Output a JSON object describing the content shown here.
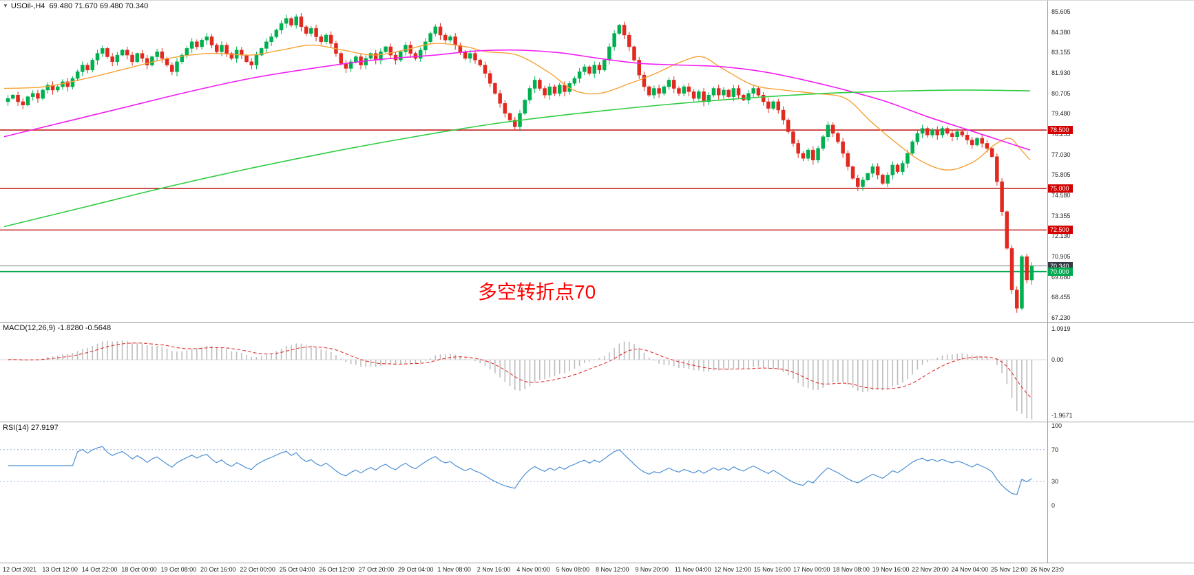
{
  "accent_colors": {
    "up_candle": "#00b050",
    "down_candle": "#e02a20",
    "level_line": "#c22020",
    "level_badge": "#d40000",
    "support_badge": "#00a84f",
    "current_badge": "#343b46",
    "annotation_red": "#ff0000"
  },
  "time_axis": {
    "labels": [
      "12 Oct 2021",
      "13 Oct 12:00",
      "14 Oct 22:00",
      "18 Oct 00:00",
      "19 Oct 08:00",
      "20 Oct 16:00",
      "22 Oct 00:00",
      "25 Oct 04:00",
      "26 Oct 12:00",
      "27 Oct 20:00",
      "29 Oct 04:00",
      "1 Nov 08:00",
      "2 Nov 16:00",
      "4 Nov 00:00",
      "5 Nov 08:00",
      "8 Nov 12:00",
      "9 Nov 20:00",
      "11 Nov 04:00",
      "12 Nov 12:00",
      "15 Nov 16:00",
      "17 Nov 00:00",
      "18 Nov 08:00",
      "19 Nov 16:00",
      "22 Nov 20:00",
      "24 Nov 04:00",
      "25 Nov 12:00",
      "26 Nov 23:0"
    ]
  },
  "chart_data": [
    {
      "type": "candlestick",
      "title": "USOil-,H4",
      "ohlc_header": "69.480 71.670 69.480 70.340",
      "ylim": [
        67.23,
        85.605
      ],
      "y_ticks": [
        "85.605",
        "84.380",
        "83.155",
        "81.930",
        "80.705",
        "79.480",
        "78.255",
        "77.030",
        "75.805",
        "74.580",
        "73.355",
        "72.130",
        "70.905",
        "69.680",
        "68.455",
        "67.230"
      ],
      "up_color": "#00b050",
      "down_color": "#e02a20",
      "closes": [
        80.4,
        80.6,
        80.2,
        80.0,
        80.5,
        80.7,
        80.4,
        80.9,
        81.2,
        80.9,
        81.1,
        81.4,
        81.1,
        81.6,
        82.0,
        82.4,
        82.1,
        82.7,
        83.1,
        83.4,
        82.9,
        82.6,
        83.0,
        83.3,
        83.0,
        82.6,
        83.1,
        82.8,
        82.4,
        82.9,
        83.2,
        82.8,
        82.4,
        82.0,
        82.6,
        83.0,
        83.4,
        83.8,
        83.5,
        83.9,
        84.1,
        83.6,
        83.2,
        83.6,
        83.1,
        82.8,
        83.3,
        83.0,
        82.6,
        82.4,
        83.0,
        83.4,
        83.8,
        84.1,
        84.5,
        84.9,
        85.2,
        84.8,
        85.3,
        84.7,
        84.3,
        84.6,
        84.1,
        83.8,
        84.2,
        83.7,
        83.1,
        82.5,
        82.2,
        82.6,
        82.9,
        82.4,
        82.8,
        83.1,
        82.7,
        83.2,
        83.5,
        83.0,
        82.7,
        83.2,
        83.6,
        83.1,
        82.8,
        83.3,
        83.8,
        84.3,
        84.7,
        84.2,
        83.9,
        84.1,
        83.6,
        83.2,
        82.8,
        83.1,
        82.7,
        82.4,
        81.9,
        81.3,
        80.7,
        80.1,
        79.5,
        79.1,
        78.7,
        79.5,
        80.3,
        81.0,
        81.5,
        81.0,
        80.6,
        81.1,
        80.7,
        81.2,
        80.8,
        81.3,
        81.6,
        82.0,
        82.3,
        81.9,
        82.4,
        82.1,
        82.7,
        83.5,
        84.3,
        84.8,
        84.2,
        83.5,
        82.7,
        81.8,
        81.1,
        80.6,
        81.0,
        80.7,
        81.1,
        81.5,
        81.0,
        80.7,
        81.1,
        80.8,
        80.4,
        80.8,
        80.2,
        80.6,
        81.0,
        80.6,
        80.9,
        80.5,
        81.0,
        80.6,
        80.3,
        80.7,
        81.0,
        80.6,
        80.2,
        79.8,
        80.2,
        79.7,
        79.1,
        78.4,
        77.7,
        77.1,
        76.8,
        77.3,
        76.7,
        77.4,
        78.1,
        78.8,
        78.3,
        77.8,
        77.1,
        76.3,
        75.6,
        75.1,
        75.5,
        75.9,
        76.3,
        75.8,
        75.3,
        75.8,
        76.4,
        76.0,
        76.5,
        77.1,
        77.8,
        78.3,
        78.6,
        78.2,
        78.5,
        78.2,
        78.6,
        78.3,
        78.1,
        78.4,
        78.2,
        77.9,
        77.6,
        78.0,
        77.7,
        77.4,
        76.9,
        75.4,
        73.6,
        71.4,
        68.9,
        67.8,
        70.9,
        69.5,
        70.34
      ],
      "ma_lines": [
        {
          "name": "fast-ma",
          "color": "#f7a234",
          "width": 1.4,
          "anchors": [
            [
              0,
              81.0
            ],
            [
              0.04,
              81.1
            ],
            [
              0.08,
              81.6
            ],
            [
              0.12,
              82.2
            ],
            [
              0.16,
              82.8
            ],
            [
              0.2,
              83.1
            ],
            [
              0.24,
              83.0
            ],
            [
              0.27,
              83.3
            ],
            [
              0.3,
              83.6
            ],
            [
              0.33,
              83.3
            ],
            [
              0.36,
              83.0
            ],
            [
              0.39,
              83.3
            ],
            [
              0.42,
              83.7
            ],
            [
              0.45,
              83.5
            ],
            [
              0.47,
              83.2
            ],
            [
              0.5,
              83.0
            ],
            [
              0.53,
              82.0
            ],
            [
              0.555,
              80.9
            ],
            [
              0.58,
              80.7
            ],
            [
              0.61,
              81.3
            ],
            [
              0.635,
              81.9
            ],
            [
              0.66,
              82.6
            ],
            [
              0.68,
              82.9
            ],
            [
              0.7,
              82.2
            ],
            [
              0.73,
              81.2
            ],
            [
              0.76,
              80.9
            ],
            [
              0.79,
              80.7
            ],
            [
              0.82,
              80.4
            ],
            [
              0.845,
              79.0
            ],
            [
              0.87,
              77.7
            ],
            [
              0.895,
              76.6
            ],
            [
              0.92,
              76.1
            ],
            [
              0.945,
              76.6
            ],
            [
              0.965,
              77.6
            ],
            [
              0.98,
              78.0
            ],
            [
              0.99,
              77.4
            ],
            [
              1,
              76.7
            ]
          ]
        },
        {
          "name": "mid-ma",
          "color": "#f21df2",
          "width": 1.6,
          "anchors": [
            [
              0,
              78.1
            ],
            [
              0.06,
              79.0
            ],
            [
              0.12,
              79.9
            ],
            [
              0.18,
              80.8
            ],
            [
              0.24,
              81.6
            ],
            [
              0.3,
              82.2
            ],
            [
              0.36,
              82.7
            ],
            [
              0.42,
              83.0
            ],
            [
              0.46,
              83.25
            ],
            [
              0.5,
              83.3
            ],
            [
              0.54,
              83.15
            ],
            [
              0.58,
              82.8
            ],
            [
              0.62,
              82.5
            ],
            [
              0.66,
              82.4
            ],
            [
              0.7,
              82.3
            ],
            [
              0.74,
              82.0
            ],
            [
              0.78,
              81.5
            ],
            [
              0.82,
              80.9
            ],
            [
              0.86,
              80.2
            ],
            [
              0.9,
              79.3
            ],
            [
              0.94,
              78.5
            ],
            [
              0.97,
              77.9
            ],
            [
              1,
              77.3
            ]
          ]
        },
        {
          "name": "slow-ma",
          "color": "#2ecc40",
          "width": 1.6,
          "anchors": [
            [
              0,
              72.7
            ],
            [
              0.08,
              73.9
            ],
            [
              0.16,
              75.1
            ],
            [
              0.24,
              76.2
            ],
            [
              0.32,
              77.2
            ],
            [
              0.4,
              78.1
            ],
            [
              0.48,
              78.9
            ],
            [
              0.56,
              79.5
            ],
            [
              0.64,
              80.0
            ],
            [
              0.72,
              80.4
            ],
            [
              0.8,
              80.7
            ],
            [
              0.88,
              80.85
            ],
            [
              0.94,
              80.9
            ],
            [
              1,
              80.85
            ]
          ]
        }
      ],
      "h_levels": [
        {
          "price": 78.5,
          "label": "78.500"
        },
        {
          "price": 75.0,
          "label": "75.000"
        },
        {
          "price": 72.5,
          "label": "72.500"
        }
      ],
      "support_line": {
        "price": 70.0,
        "label": "70.000",
        "color": "#00a84f"
      },
      "current_price": {
        "value": 70.34,
        "label": "70.340",
        "line_color": "#808080"
      },
      "annotation": {
        "text": "多空转折点70",
        "color": "#ff0000"
      }
    },
    {
      "type": "macd",
      "label": "MACD(12,26,9) -1.8280 -0.5648",
      "params": [
        12,
        26,
        9
      ],
      "current_macd": "-1.8280",
      "current_signal": "-0.5648",
      "y_ticks": [
        "1.0919",
        "0.00",
        "-1.9671"
      ],
      "ylim": [
        -2.0,
        1.12
      ],
      "histogram_color": "#bdbdbd",
      "signal_color": "#e03030"
    },
    {
      "type": "rsi",
      "label": "RSI(14) 27.9197",
      "period": 14,
      "current_value": "27.9197",
      "y_ticks": [
        "100",
        "70",
        "30",
        "0"
      ],
      "levels": [
        70,
        30
      ],
      "ylim": [
        0,
        100
      ],
      "line_color": "#4a8fd4",
      "level_color": "#9fb6df"
    }
  ]
}
